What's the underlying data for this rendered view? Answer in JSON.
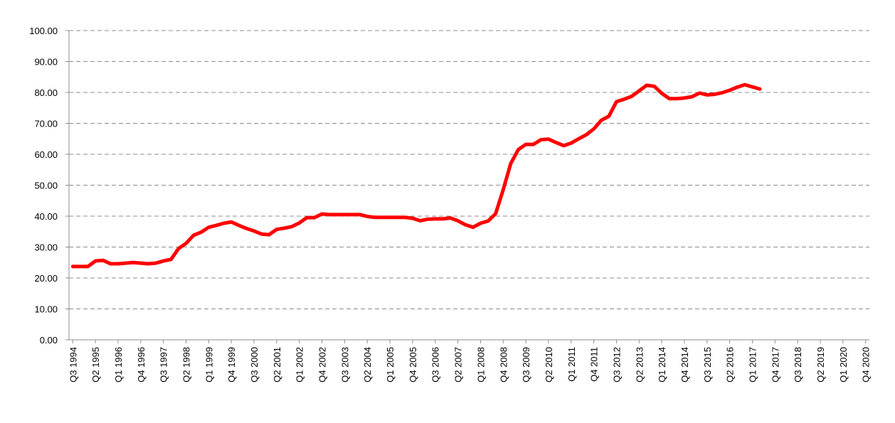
{
  "chart_data": {
    "type": "line",
    "categories": [
      "Q3 1994",
      null,
      null,
      "Q2 1995",
      null,
      null,
      "Q1 1996",
      null,
      null,
      "Q4 1996",
      null,
      null,
      "Q3 1997",
      null,
      null,
      "Q2 1998",
      null,
      null,
      "Q1 1999",
      null,
      null,
      "Q4 1999",
      null,
      null,
      "Q3 2000",
      null,
      null,
      "Q2 2001",
      null,
      null,
      "Q1 2002",
      null,
      null,
      "Q4 2002",
      null,
      null,
      "Q3 2003",
      null,
      null,
      "Q2 2004",
      null,
      null,
      "Q1 2005",
      null,
      null,
      "Q4 2005",
      null,
      null,
      "Q3 2006",
      null,
      null,
      "Q2 2007",
      null,
      null,
      "Q1 2008",
      null,
      null,
      "Q4 2008",
      null,
      null,
      "Q3 2009",
      null,
      null,
      "Q2 2010",
      null,
      null,
      "Q1 2011",
      null,
      null,
      "Q4 2011",
      null,
      null,
      "Q3 2012",
      null,
      null,
      "Q2 2013",
      null,
      null,
      "Q1 2014",
      null,
      null,
      "Q4 2014",
      null,
      null,
      "Q3 2015",
      null,
      null,
      "Q2 2016",
      null,
      null,
      "Q1 2017",
      null,
      null,
      "Q4 2017",
      null,
      null,
      "Q3 2018",
      null,
      null,
      "Q2 2019",
      null,
      null,
      "Q1 2020",
      null,
      null,
      "Q4 2020"
    ],
    "series": [
      {
        "color": "#ff0000",
        "values": [
          23.7,
          23.7,
          23.7,
          25.5,
          25.7,
          24.6,
          24.6,
          24.8,
          25.0,
          24.8,
          24.6,
          24.8,
          25.5,
          26.0,
          29.5,
          31.2,
          33.8,
          34.8,
          36.4,
          37.0,
          37.7,
          38.1,
          37.0,
          36.0,
          35.2,
          34.2,
          34.0,
          35.7,
          36.1,
          36.6,
          37.8,
          39.5,
          39.5,
          40.7,
          40.5,
          40.5,
          40.5,
          40.5,
          40.5,
          39.9,
          39.6,
          39.6,
          39.6,
          39.6,
          39.6,
          39.3,
          38.5,
          39.0,
          39.1,
          39.1,
          39.4,
          38.5,
          37.2,
          36.4,
          37.7,
          38.4,
          40.8,
          48.5,
          57.0,
          61.5,
          63.2,
          63.2,
          64.7,
          64.9,
          63.8,
          62.8,
          63.6,
          65.0,
          66.3,
          68.2,
          71.0,
          72.3,
          77.0,
          77.8,
          78.7,
          80.5,
          82.3,
          82.0,
          79.7,
          78.0,
          78.0,
          78.2,
          78.6,
          79.8,
          79.2,
          79.4,
          79.9,
          80.7,
          81.7,
          82.5,
          81.8,
          81.1,
          null,
          null,
          null,
          null,
          null,
          null,
          null,
          null,
          null,
          null,
          null,
          null,
          null,
          null
        ]
      }
    ],
    "ylim": [
      0,
      100
    ],
    "yticks": [
      {
        "value": 0,
        "label": "0.00"
      },
      {
        "value": 10,
        "label": "10.00"
      },
      {
        "value": 20,
        "label": "20.00"
      },
      {
        "value": 30,
        "label": "30.00"
      },
      {
        "value": 40,
        "label": "40.00"
      },
      {
        "value": 50,
        "label": "50.00"
      },
      {
        "value": 60,
        "label": "60.00"
      },
      {
        "value": 70,
        "label": "70.00"
      },
      {
        "value": 80,
        "label": "80.00"
      },
      {
        "value": 90,
        "label": "90.00"
      },
      {
        "value": 100,
        "label": "100.00"
      }
    ],
    "grid": true
  }
}
